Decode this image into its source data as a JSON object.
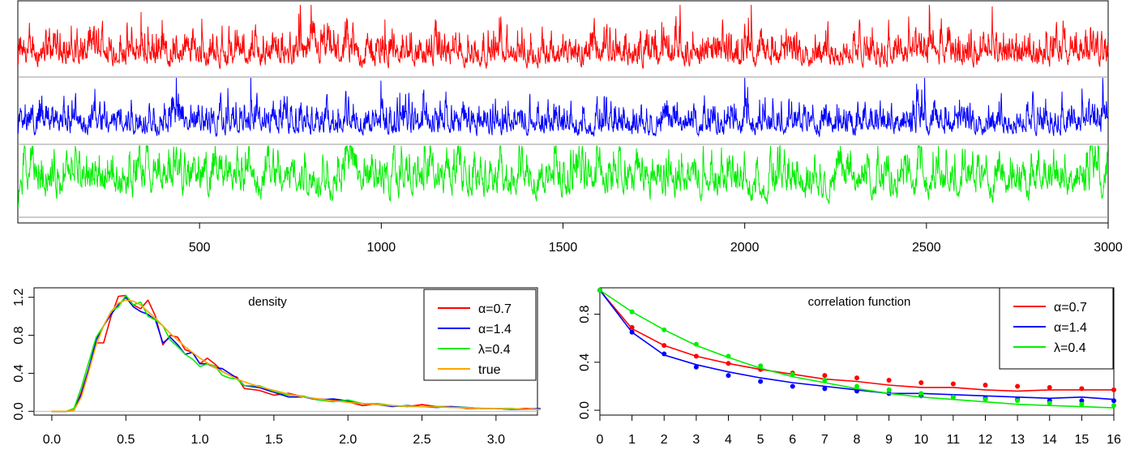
{
  "chart_data": [
    {
      "type": "line",
      "panel": "time-series",
      "xlim": [
        0,
        3000
      ],
      "x_ticks": [
        500,
        1000,
        1500,
        2000,
        2500,
        3000
      ],
      "n_points": 3000,
      "series": [
        {
          "color": "#ff0000",
          "band": "top"
        },
        {
          "color": "#0000ff",
          "band": "middle"
        },
        {
          "color": "#00ee00",
          "band": "bottom"
        }
      ],
      "grid": false
    },
    {
      "type": "line",
      "title": "density",
      "xlim": [
        -0.12,
        3.28
      ],
      "ylim": [
        -0.04,
        1.3
      ],
      "x_ticks": [
        "0.0",
        "0.5",
        "1.0",
        "1.5",
        "2.0",
        "2.5",
        "3.0"
      ],
      "y_ticks": [
        "0.0",
        "0.4",
        "0.8",
        "1.2"
      ],
      "x": [
        0.0,
        0.1,
        0.15,
        0.2,
        0.25,
        0.3,
        0.35,
        0.4,
        0.45,
        0.5,
        0.55,
        0.6,
        0.65,
        0.7,
        0.75,
        0.8,
        0.85,
        0.9,
        0.95,
        1.0,
        1.05,
        1.1,
        1.15,
        1.2,
        1.25,
        1.3,
        1.4,
        1.5,
        1.6,
        1.7,
        1.8,
        1.9,
        2.0,
        2.1,
        2.2,
        2.3,
        2.4,
        2.5,
        2.6,
        2.7,
        2.8,
        2.9,
        3.0,
        3.1,
        3.2,
        3.3
      ],
      "series": [
        {
          "name": "α=0.7",
          "color": "#ff0000",
          "values": [
            0,
            0,
            0.01,
            0.2,
            0.45,
            0.72,
            0.72,
            1.0,
            1.21,
            1.22,
            1.12,
            1.08,
            1.17,
            1.0,
            0.7,
            0.8,
            0.78,
            0.65,
            0.62,
            0.5,
            0.56,
            0.5,
            0.42,
            0.38,
            0.36,
            0.24,
            0.22,
            0.17,
            0.19,
            0.15,
            0.13,
            0.12,
            0.1,
            0.06,
            0.08,
            0.06,
            0.05,
            0.07,
            0.05,
            0.05,
            0.03,
            0.03,
            0.03,
            0.02,
            0.03,
            0.02
          ]
        },
        {
          "name": "α=1.4",
          "color": "#0000ff",
          "values": [
            0,
            0,
            0.01,
            0.18,
            0.45,
            0.75,
            0.9,
            1.02,
            1.12,
            1.2,
            1.1,
            1.05,
            1.02,
            0.96,
            0.72,
            0.78,
            0.7,
            0.6,
            0.62,
            0.5,
            0.5,
            0.46,
            0.45,
            0.4,
            0.35,
            0.27,
            0.25,
            0.2,
            0.15,
            0.15,
            0.12,
            0.13,
            0.11,
            0.08,
            0.07,
            0.05,
            0.06,
            0.05,
            0.04,
            0.05,
            0.04,
            0.03,
            0.03,
            0.02,
            0.02,
            0.03
          ]
        },
        {
          "name": "λ=0.4",
          "color": "#00ee00",
          "values": [
            0,
            0,
            0.03,
            0.25,
            0.52,
            0.78,
            0.9,
            1.05,
            1.1,
            1.22,
            1.12,
            1.15,
            1.0,
            0.96,
            0.9,
            0.75,
            0.68,
            0.6,
            0.55,
            0.47,
            0.5,
            0.48,
            0.38,
            0.35,
            0.34,
            0.27,
            0.27,
            0.21,
            0.17,
            0.16,
            0.12,
            0.1,
            0.12,
            0.08,
            0.08,
            0.06,
            0.05,
            0.05,
            0.05,
            0.04,
            0.04,
            0.03,
            0.03,
            0.03,
            0.02,
            0.02
          ]
        },
        {
          "name": "true",
          "color": "#ffa500",
          "values": [
            0,
            0,
            0.01,
            0.15,
            0.42,
            0.7,
            0.9,
            1.05,
            1.14,
            1.17,
            1.16,
            1.12,
            1.05,
            0.98,
            0.9,
            0.82,
            0.75,
            0.68,
            0.62,
            0.56,
            0.51,
            0.46,
            0.42,
            0.38,
            0.34,
            0.31,
            0.26,
            0.22,
            0.18,
            0.15,
            0.13,
            0.11,
            0.095,
            0.08,
            0.07,
            0.06,
            0.055,
            0.05,
            0.045,
            0.04,
            0.035,
            0.032,
            0.03,
            0.025,
            0.022,
            0.02
          ]
        }
      ],
      "legend": "top-right"
    },
    {
      "type": "line",
      "title": "correlation function",
      "xlim": [
        0,
        16
      ],
      "ylim": [
        -0.04,
        1.02
      ],
      "x_ticks": [
        "0",
        "1",
        "2",
        "3",
        "4",
        "5",
        "6",
        "7",
        "8",
        "9",
        "10",
        "11",
        "12",
        "13",
        "14",
        "15",
        "16"
      ],
      "y_ticks": [
        "0.0",
        "0.4",
        "0.8"
      ],
      "lags": [
        0,
        1,
        2,
        3,
        4,
        5,
        6,
        7,
        8,
        9,
        10,
        11,
        12,
        13,
        14,
        15,
        16
      ],
      "series": [
        {
          "name": "α=0.7",
          "color": "#ff0000",
          "line": [
            1,
            0.68,
            0.54,
            0.45,
            0.39,
            0.34,
            0.3,
            0.26,
            0.24,
            0.21,
            0.19,
            0.19,
            0.17,
            0.16,
            0.17,
            0.17,
            0.17
          ],
          "points": [
            1,
            0.69,
            0.54,
            0.45,
            0.39,
            0.34,
            0.31,
            0.29,
            0.27,
            0.25,
            0.23,
            0.22,
            0.21,
            0.2,
            0.19,
            0.18,
            0.17
          ]
        },
        {
          "name": "α=1.4",
          "color": "#0000ff",
          "line": [
            1,
            0.65,
            0.46,
            0.38,
            0.32,
            0.27,
            0.23,
            0.2,
            0.17,
            0.14,
            0.14,
            0.13,
            0.12,
            0.11,
            0.1,
            0.11,
            0.09
          ],
          "points": [
            1,
            0.65,
            0.47,
            0.36,
            0.29,
            0.24,
            0.2,
            0.18,
            0.16,
            0.14,
            0.12,
            0.11,
            0.1,
            0.09,
            0.08,
            0.08,
            0.08
          ]
        },
        {
          "name": "λ=0.4",
          "color": "#00ee00",
          "line": [
            1,
            0.82,
            0.67,
            0.54,
            0.44,
            0.35,
            0.28,
            0.23,
            0.18,
            0.14,
            0.11,
            0.09,
            0.07,
            0.05,
            0.04,
            0.03,
            0.02
          ],
          "points": [
            1,
            0.82,
            0.67,
            0.55,
            0.45,
            0.37,
            0.3,
            0.25,
            0.2,
            0.17,
            0.14,
            0.11,
            0.09,
            0.08,
            0.06,
            0.05,
            0.04
          ]
        }
      ],
      "legend": "top-right"
    }
  ]
}
